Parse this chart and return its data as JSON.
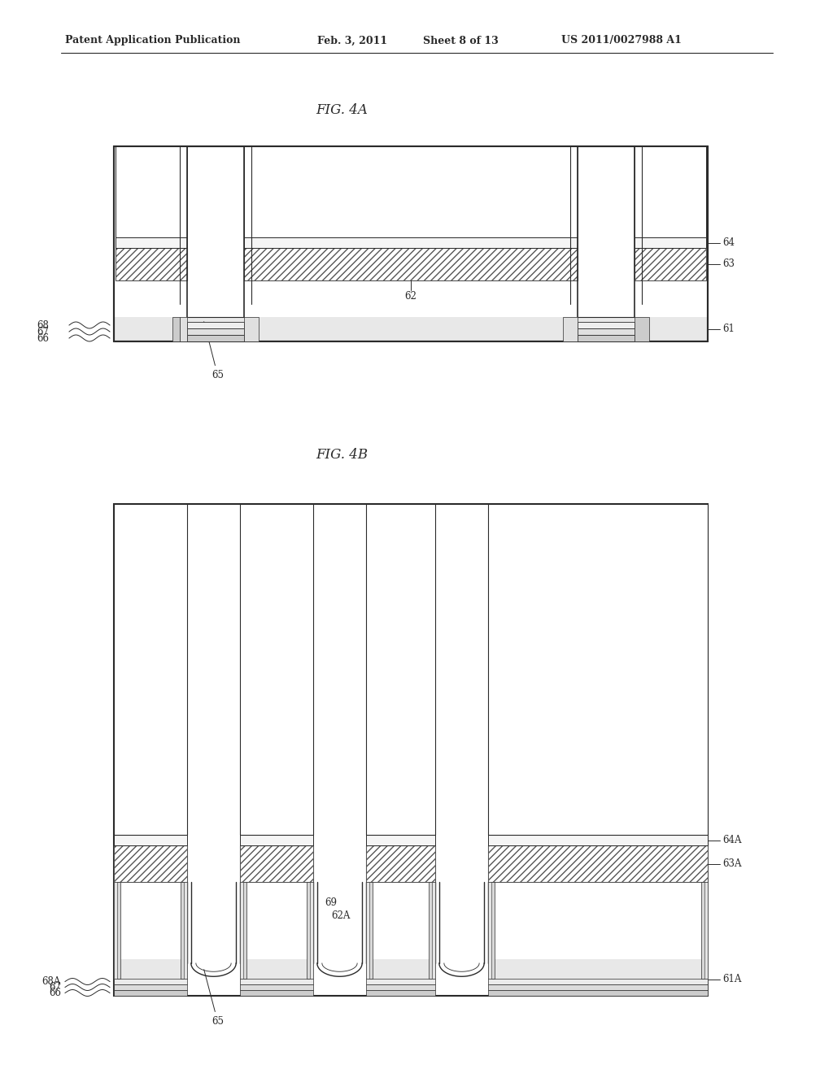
{
  "bg_color": "#ffffff",
  "line_color": "#2a2a2a",
  "header_left": "Patent Application Publication",
  "header_mid1": "Feb. 3, 2011",
  "header_mid2": "Sheet 8 of 13",
  "header_right": "US 2011/0027988 A1",
  "fig4a_title": "FIG. 4A",
  "fig4b_title": "FIG. 4B",
  "label_fontsize": 8.5,
  "title_fontsize": 12,
  "header_fontsize": 9
}
